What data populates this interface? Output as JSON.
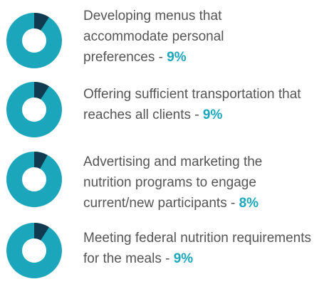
{
  "chart_data": [
    {
      "type": "pie",
      "title": "Developing menus that accommodate personal preferences - ",
      "values": [
        9
      ],
      "value_labels": [
        "9%"
      ],
      "color": "#0f3a4f",
      "track_color": "#1ba6bc"
    },
    {
      "type": "pie",
      "title": "Offering sufficient transportation that reaches all clients - ",
      "values": [
        9
      ],
      "value_labels": [
        "9%"
      ],
      "color": "#0f3a4f",
      "track_color": "#1ba6bc"
    },
    {
      "type": "pie",
      "title": "Advertising and marketing the nutrition programs to engage current/new participants - ",
      "values": [
        8
      ],
      "value_labels": [
        "8%"
      ],
      "color": "#0f3a4f",
      "track_color": "#1ba6bc"
    },
    {
      "type": "pie",
      "title": "Meeting federal nutrition requirements for the meals - ",
      "values": [
        9
      ],
      "value_labels": [
        "9%"
      ],
      "color": "#0f3a4f",
      "track_color": "#1ba6bc"
    }
  ]
}
